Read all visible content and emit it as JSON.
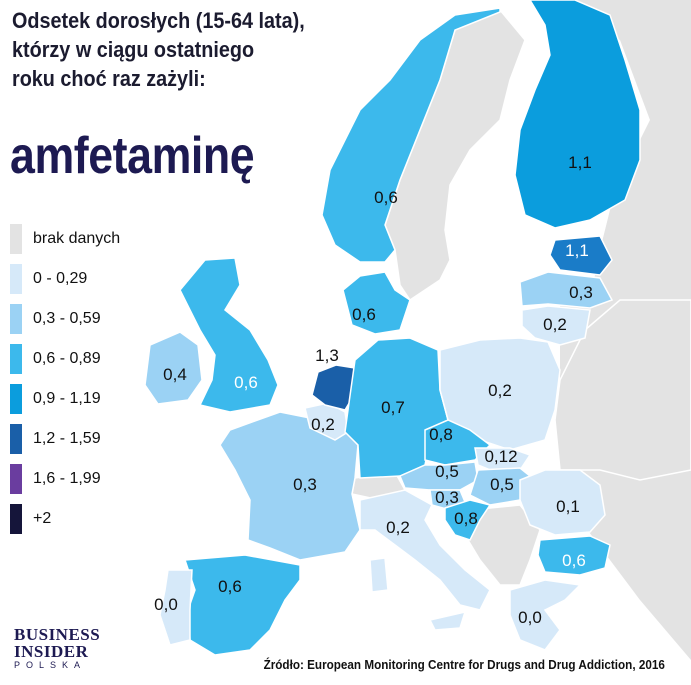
{
  "title": {
    "line1": "Odsetek dorosłych (15-64 lata),",
    "line2": "którzy w ciągu ostatniego",
    "line3": "roku choć raz zażyli:",
    "substance": "amfetaminę"
  },
  "legend": [
    {
      "label": "brak danych",
      "color": "#e3e3e3"
    },
    {
      "label": "0 - 0,29",
      "color": "#d6e9f9"
    },
    {
      "label": "0,3 - 0,59",
      "color": "#9bd2f4"
    },
    {
      "label": "0,6 - 0,89",
      "color": "#3cb9ec"
    },
    {
      "label": "0,9 - 1,19",
      "color": "#0b9ddd"
    },
    {
      "label": "1,2 - 1,59",
      "color": "#1a5fa8"
    },
    {
      "label": "1,6 - 1,99",
      "color": "#6a3d9f"
    },
    {
      "label": "+2",
      "color": "#15153a"
    }
  ],
  "countries": {
    "finland": {
      "value": "1,1",
      "color": "#0b9ddd"
    },
    "estonia": {
      "value": "1,1",
      "color": "#1a7cc8"
    },
    "latvia": {
      "value": "0,3",
      "color": "#9bd2f4"
    },
    "lithuania": {
      "value": "0,2",
      "color": "#d6e9f9"
    },
    "norway": {
      "value": "0,6",
      "color": "#3cb9ec"
    },
    "sweden": {
      "value": "",
      "color": "#e3e3e3"
    },
    "denmark": {
      "value": "0,6",
      "color": "#3cb9ec"
    },
    "netherlands": {
      "value": "1,3",
      "color": "#1a5fa8"
    },
    "belgium": {
      "value": "0,2",
      "color": "#d6e9f9"
    },
    "uk": {
      "value": "0,6",
      "color": "#3cb9ec"
    },
    "ireland": {
      "value": "0,4",
      "color": "#9bd2f4"
    },
    "germany": {
      "value": "0,7",
      "color": "#3cb9ec"
    },
    "poland": {
      "value": "0,2",
      "color": "#d6e9f9"
    },
    "czechia": {
      "value": "0,8",
      "color": "#3cb9ec"
    },
    "slovakia": {
      "value": "0,12",
      "color": "#d6e9f9"
    },
    "austria": {
      "value": "0,5",
      "color": "#9bd2f4"
    },
    "hungary": {
      "value": "0,5",
      "color": "#9bd2f4"
    },
    "slovenia": {
      "value": "0,3",
      "color": "#9bd2f4"
    },
    "croatia": {
      "value": "0,8",
      "color": "#3cb9ec"
    },
    "france": {
      "value": "0,3",
      "color": "#9bd2f4"
    },
    "italy": {
      "value": "0,2",
      "color": "#d6e9f9"
    },
    "spain": {
      "value": "0,6",
      "color": "#3cb9ec"
    },
    "portugal": {
      "value": "0,0",
      "color": "#d6e9f9"
    },
    "romania": {
      "value": "0,1",
      "color": "#d6e9f9"
    },
    "bulgaria": {
      "value": "0,6",
      "color": "#3cb9ec"
    },
    "greece": {
      "value": "0,0",
      "color": "#d6e9f9"
    }
  },
  "colors": {
    "sea": "#ffffff",
    "no_data_land": "#e3e3e3",
    "border": "#ffffff"
  },
  "logo": {
    "line1": "BUSINESS",
    "line2": "INSIDER",
    "line3": "POLSKA"
  },
  "source": "Źródło: European Monitoring Centre for Drugs and Drug Addiction, 2016"
}
